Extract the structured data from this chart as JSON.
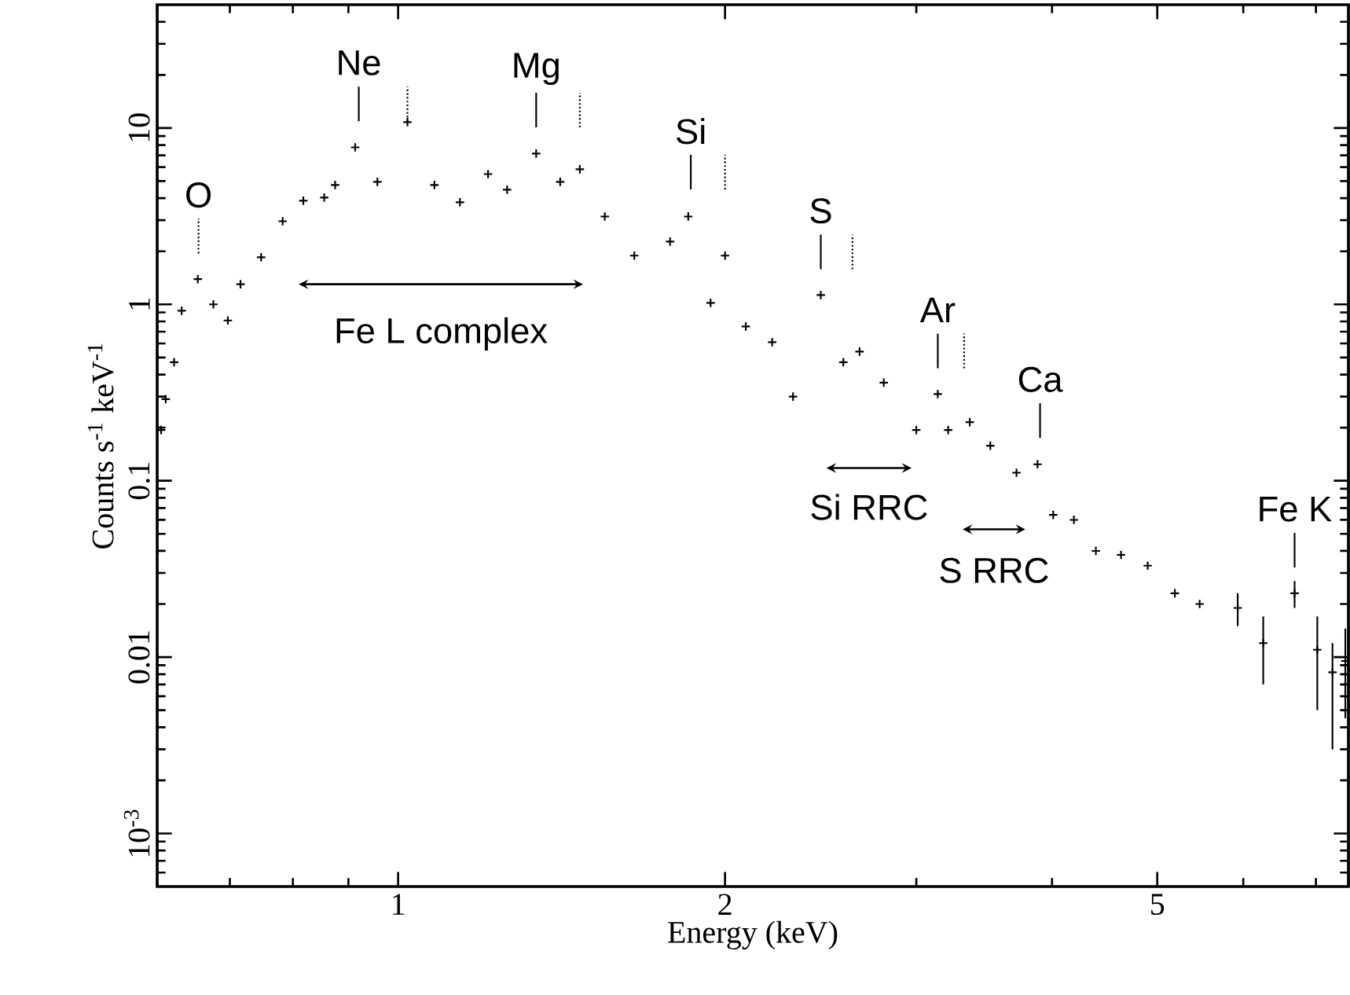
{
  "chart_data": {
    "type": "scatter",
    "marker": "cross",
    "log": "xy",
    "xlabel": "Energy (keV)",
    "ylabel": "Counts s$^{-1}$ keV$^{-1}$",
    "xlim": [
      0.6,
      7.5
    ],
    "ylim": [
      0.0005,
      50
    ],
    "xticks": [
      1,
      2,
      5
    ],
    "yticks": [
      {
        "value": 0.001,
        "label": "10$^{-3}$"
      },
      0.01,
      0.1,
      1,
      10
    ],
    "series": [
      {
        "color": "#000000",
        "x": [
          0.605,
          0.611,
          0.622,
          0.632,
          0.654,
          0.676,
          0.697,
          0.716,
          0.748,
          0.783,
          0.818,
          0.855,
          0.875,
          0.913,
          0.957,
          1.02,
          1.08,
          1.14,
          1.21,
          1.26,
          1.34,
          1.41,
          1.47,
          1.55,
          1.65,
          1.78,
          1.85,
          1.94,
          2.0,
          2.09,
          2.21,
          2.31,
          2.45,
          2.57,
          2.66,
          2.8,
          3.0,
          3.14,
          3.21,
          3.36,
          3.51,
          3.71,
          3.88,
          4.01,
          4.19,
          4.39,
          4.63,
          4.9,
          5.19,
          5.47,
          5.93,
          6.26,
          6.69,
          7.02,
          7.25,
          7.45
        ],
        "values": [
          0.194,
          0.29,
          0.47,
          0.92,
          1.39,
          1.0,
          0.81,
          1.3,
          1.85,
          2.96,
          3.87,
          4.03,
          4.75,
          7.77,
          4.95,
          10.8,
          4.75,
          3.79,
          5.48,
          4.47,
          7.16,
          4.95,
          5.83,
          3.15,
          1.89,
          2.27,
          3.15,
          1.02,
          1.89,
          0.75,
          0.61,
          0.3,
          1.13,
          0.47,
          0.54,
          0.36,
          0.194,
          0.31,
          0.194,
          0.215,
          0.158,
          0.111,
          0.124,
          0.064,
          0.06,
          0.04,
          0.038,
          0.033,
          0.023,
          0.02,
          0.019,
          0.012,
          0.023,
          0.011,
          0.0082,
          0.0095
        ],
        "errors": [
          null,
          null,
          null,
          null,
          null,
          null,
          null,
          null,
          null,
          null,
          null,
          null,
          null,
          null,
          null,
          null,
          null,
          null,
          null,
          null,
          null,
          null,
          null,
          null,
          null,
          null,
          null,
          null,
          null,
          null,
          null,
          null,
          null,
          null,
          null,
          null,
          null,
          null,
          null,
          null,
          null,
          null,
          null,
          null,
          null,
          null,
          null,
          null,
          null,
          null,
          0.004,
          0.005,
          0.004,
          0.006,
          [
            0.003,
            0.012
          ],
          0.005
        ]
      }
    ],
    "annotations": [
      {
        "text": "O",
        "x": 0.655,
        "y": 1.39
      },
      {
        "text": "Ne",
        "x": 0.92,
        "y": 7.8
      },
      {
        "text": "Mg",
        "x": 1.34,
        "y": 7.2
      },
      {
        "text": "Si",
        "x": 1.86,
        "y": 3.2
      },
      {
        "text": "S",
        "x": 2.45,
        "y": 1.13
      },
      {
        "text": "Ar",
        "x": 3.14,
        "y": 0.31
      },
      {
        "text": "Ca",
        "x": 3.9,
        "y": 0.125
      },
      {
        "text": "Fe K",
        "x": 6.69,
        "y": 0.023
      },
      "Fe L complex",
      "Si RRC",
      "S RRC"
    ]
  }
}
